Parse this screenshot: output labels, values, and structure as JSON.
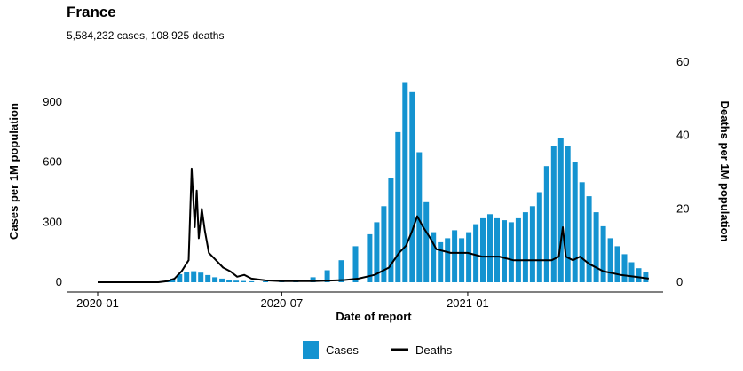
{
  "header": {
    "title": "France",
    "subtitle": "5,584,232 cases, 108,925 deaths"
  },
  "colors": {
    "cases": "#1493d0",
    "deaths": "#000000",
    "axis": "#000000"
  },
  "chart_data": {
    "type": "bar",
    "title": "France",
    "subtitle": "5,584,232 cases, 108,925 deaths",
    "xlabel": "Date of report",
    "ylabel_left": "Cases per 1M population",
    "ylabel_right": "Deaths per 1M population",
    "x_ticks": [
      "2020-01",
      "2020-07",
      "2021-01"
    ],
    "y_left_ticks": [
      "0",
      "300",
      "600",
      "900"
    ],
    "y_right_ticks": [
      "0",
      "20",
      "40",
      "60"
    ],
    "xlim": [
      "2020-01-01",
      "2021-06-30"
    ],
    "ylim_left": [
      0,
      1100
    ],
    "ylim_right": [
      0,
      60
    ],
    "legend_position": "bottom",
    "series": [
      {
        "name": "Cases",
        "type": "bar",
        "axis": "left",
        "points": [
          [
            "2020-03-01",
            2
          ],
          [
            "2020-03-10",
            8
          ],
          [
            "2020-03-15",
            18
          ],
          [
            "2020-03-22",
            40
          ],
          [
            "2020-03-29",
            50
          ],
          [
            "2020-04-05",
            55
          ],
          [
            "2020-04-12",
            48
          ],
          [
            "2020-04-19",
            36
          ],
          [
            "2020-04-26",
            25
          ],
          [
            "2020-05-03",
            18
          ],
          [
            "2020-05-10",
            12
          ],
          [
            "2020-05-17",
            8
          ],
          [
            "2020-05-24",
            6
          ],
          [
            "2020-06-01",
            5
          ],
          [
            "2020-06-15",
            5
          ],
          [
            "2020-07-01",
            6
          ],
          [
            "2020-07-15",
            10
          ],
          [
            "2020-08-01",
            25
          ],
          [
            "2020-08-15",
            60
          ],
          [
            "2020-08-29",
            110
          ],
          [
            "2020-09-12",
            180
          ],
          [
            "2020-09-26",
            240
          ],
          [
            "2020-10-03",
            300
          ],
          [
            "2020-10-10",
            380
          ],
          [
            "2020-10-17",
            520
          ],
          [
            "2020-10-24",
            750
          ],
          [
            "2020-10-31",
            1000
          ],
          [
            "2020-11-07",
            950
          ],
          [
            "2020-11-14",
            650
          ],
          [
            "2020-11-21",
            400
          ],
          [
            "2020-11-28",
            250
          ],
          [
            "2020-12-05",
            200
          ],
          [
            "2020-12-12",
            220
          ],
          [
            "2020-12-19",
            260
          ],
          [
            "2020-12-26",
            220
          ],
          [
            "2021-01-02",
            250
          ],
          [
            "2021-01-09",
            290
          ],
          [
            "2021-01-16",
            320
          ],
          [
            "2021-01-23",
            340
          ],
          [
            "2021-01-30",
            320
          ],
          [
            "2021-02-06",
            310
          ],
          [
            "2021-02-13",
            300
          ],
          [
            "2021-02-20",
            320
          ],
          [
            "2021-02-27",
            350
          ],
          [
            "2021-03-06",
            380
          ],
          [
            "2021-03-13",
            450
          ],
          [
            "2021-03-20",
            580
          ],
          [
            "2021-03-27",
            680
          ],
          [
            "2021-04-03",
            720
          ],
          [
            "2021-04-10",
            680
          ],
          [
            "2021-04-17",
            600
          ],
          [
            "2021-04-24",
            500
          ],
          [
            "2021-05-01",
            430
          ],
          [
            "2021-05-08",
            350
          ],
          [
            "2021-05-15",
            280
          ],
          [
            "2021-05-22",
            220
          ],
          [
            "2021-05-29",
            180
          ],
          [
            "2021-06-05",
            140
          ],
          [
            "2021-06-12",
            100
          ],
          [
            "2021-06-19",
            70
          ],
          [
            "2021-06-26",
            50
          ]
        ]
      },
      {
        "name": "Deaths",
        "type": "line",
        "axis": "right",
        "points": [
          [
            "2020-01-01",
            0
          ],
          [
            "2020-03-01",
            0
          ],
          [
            "2020-03-10",
            0.3
          ],
          [
            "2020-03-17",
            1
          ],
          [
            "2020-03-24",
            3
          ],
          [
            "2020-03-31",
            6
          ],
          [
            "2020-04-03",
            31
          ],
          [
            "2020-04-06",
            15
          ],
          [
            "2020-04-08",
            25
          ],
          [
            "2020-04-10",
            12
          ],
          [
            "2020-04-13",
            20
          ],
          [
            "2020-04-16",
            14
          ],
          [
            "2020-04-20",
            8
          ],
          [
            "2020-04-27",
            6
          ],
          [
            "2020-05-04",
            4
          ],
          [
            "2020-05-11",
            3
          ],
          [
            "2020-05-18",
            1.5
          ],
          [
            "2020-05-25",
            2
          ],
          [
            "2020-06-01",
            1
          ],
          [
            "2020-06-15",
            0.5
          ],
          [
            "2020-07-01",
            0.3
          ],
          [
            "2020-08-01",
            0.3
          ],
          [
            "2020-09-01",
            0.6
          ],
          [
            "2020-09-15",
            1
          ],
          [
            "2020-10-01",
            2
          ],
          [
            "2020-10-15",
            4
          ],
          [
            "2020-10-25",
            8
          ],
          [
            "2020-11-01",
            10
          ],
          [
            "2020-11-07",
            14
          ],
          [
            "2020-11-12",
            18
          ],
          [
            "2020-11-18",
            15
          ],
          [
            "2020-11-25",
            12
          ],
          [
            "2020-12-01",
            9
          ],
          [
            "2020-12-15",
            8
          ],
          [
            "2021-01-01",
            8
          ],
          [
            "2021-01-15",
            7
          ],
          [
            "2021-02-01",
            7
          ],
          [
            "2021-02-15",
            6
          ],
          [
            "2021-03-01",
            6
          ],
          [
            "2021-03-15",
            6
          ],
          [
            "2021-03-25",
            6
          ],
          [
            "2021-04-01",
            7
          ],
          [
            "2021-04-05",
            15
          ],
          [
            "2021-04-08",
            7
          ],
          [
            "2021-04-15",
            6
          ],
          [
            "2021-04-22",
            7
          ],
          [
            "2021-05-01",
            5
          ],
          [
            "2021-05-15",
            3
          ],
          [
            "2021-06-01",
            2
          ],
          [
            "2021-06-15",
            1.5
          ],
          [
            "2021-06-29",
            1
          ]
        ]
      }
    ]
  },
  "legend": {
    "cases_label": "Cases",
    "deaths_label": "Deaths"
  }
}
